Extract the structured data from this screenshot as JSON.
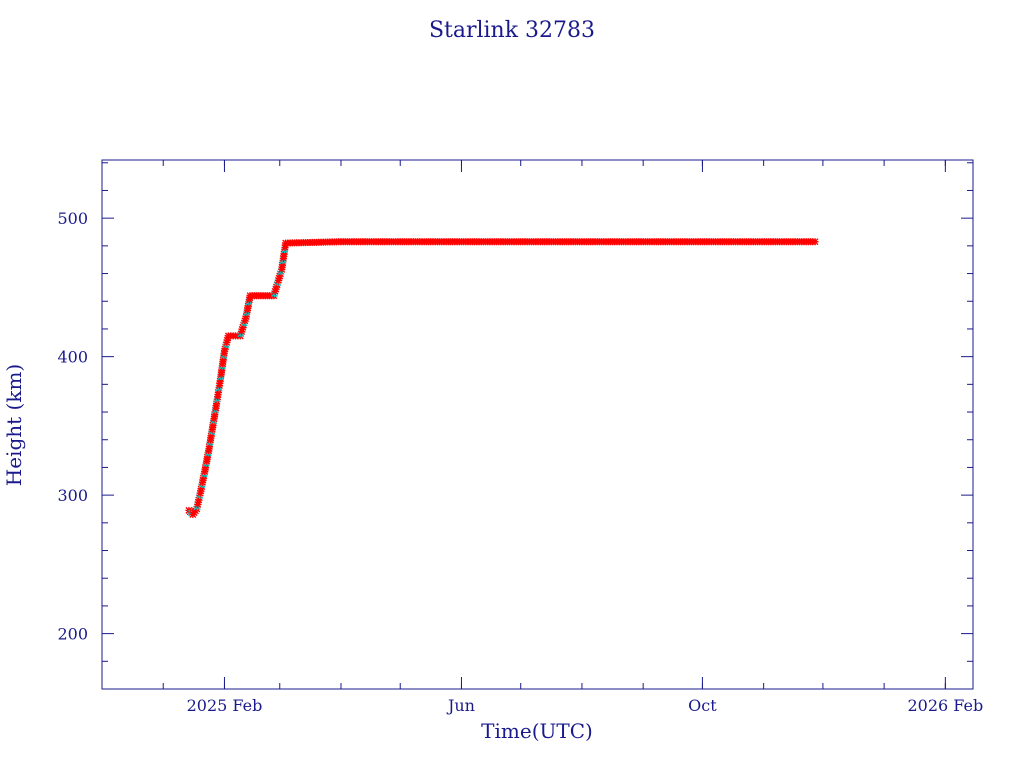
{
  "chart_data": {
    "type": "line",
    "title": "Starlink 32783",
    "xlabel": "Time(UTC)",
    "ylabel": "Height (km)",
    "x_ticks": [
      "2025 Feb",
      "Jun",
      "Oct",
      "2026 Feb"
    ],
    "y_ticks": [
      200,
      300,
      400,
      500
    ],
    "xlim": [
      "2024-12-01",
      "2026-02-15"
    ],
    "ylim": [
      160,
      542
    ],
    "grid": false,
    "legend": "none",
    "colors": {
      "axis": "#1a1a8c",
      "series": "#ff0000",
      "marker_alt": "#00c8c8",
      "connector": "#1a1a8c"
    },
    "series": [
      {
        "values": [
          [
            "2025-01-14",
            289
          ],
          [
            "2025-01-16",
            286
          ],
          [
            "2025-01-18",
            290
          ],
          [
            "2025-01-20",
            303
          ],
          [
            "2025-01-22",
            317
          ],
          [
            "2025-01-24",
            332
          ],
          [
            "2025-01-26",
            349
          ],
          [
            "2025-01-28",
            366
          ],
          [
            "2025-01-30",
            384
          ],
          [
            "2025-02-01",
            404
          ],
          [
            "2025-02-03",
            415
          ],
          [
            "2025-02-09",
            415
          ],
          [
            "2025-02-12",
            429
          ],
          [
            "2025-02-14",
            444
          ],
          [
            "2025-02-26",
            444
          ],
          [
            "2025-03-02",
            463
          ],
          [
            "2025-03-04",
            482
          ],
          [
            "2025-04-01",
            483
          ],
          [
            "2025-06-01",
            483
          ],
          [
            "2025-08-01",
            483
          ],
          [
            "2025-10-01",
            483
          ],
          [
            "2025-11-27",
            483
          ]
        ]
      }
    ]
  }
}
